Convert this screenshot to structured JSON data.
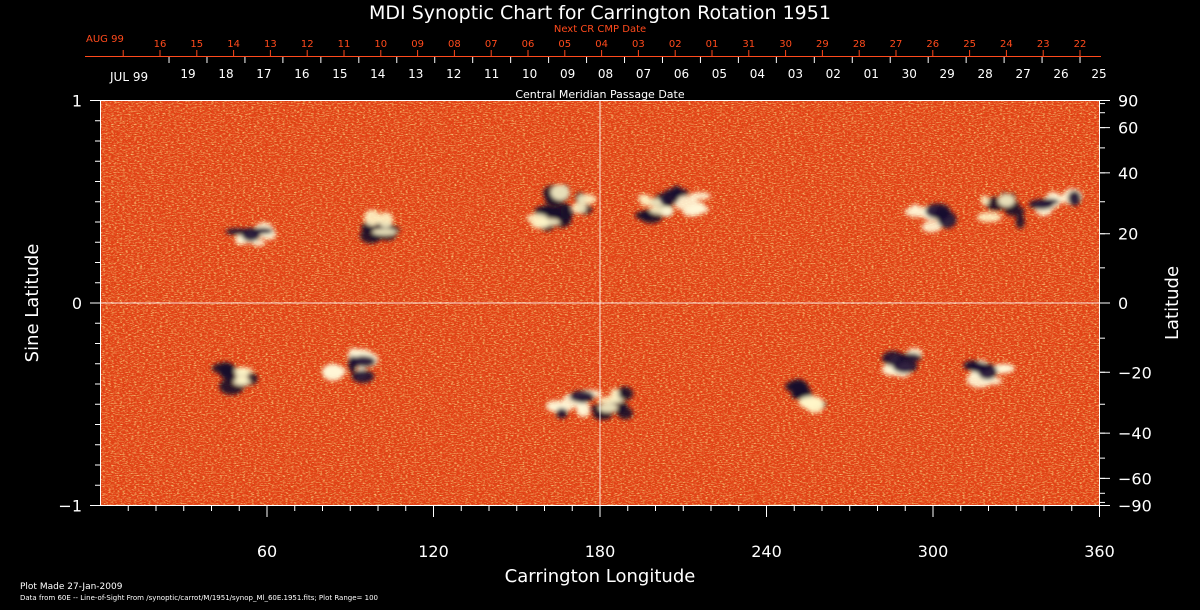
{
  "chart_data": {
    "type": "heatmap",
    "title": "MDI Synoptic Chart for Carrington Rotation 1951",
    "xlabel": "Carrington Longitude",
    "ylabel_left": "Sine Latitude",
    "ylabel_right": "Latitude",
    "xlim": [
      0,
      360
    ],
    "ylim": [
      -1,
      1
    ],
    "x_ticks": [
      60,
      120,
      180,
      240,
      300,
      360
    ],
    "y_ticks_left": [
      "1",
      "0",
      "−1"
    ],
    "lat_ticks": [
      90,
      60,
      40,
      20,
      0,
      -20,
      -40,
      -60,
      -90
    ],
    "lat_tick_labels": [
      "90",
      "60",
      "40",
      "20",
      "0",
      "−20",
      "−40",
      "−60",
      "−90"
    ],
    "top_axis_1": {
      "label": "Next CR CMP Date",
      "month": "AUG 99",
      "days": [
        "16",
        "15",
        "14",
        "13",
        "12",
        "11",
        "10",
        "09",
        "08",
        "07",
        "06",
        "05",
        "04",
        "03",
        "02",
        "01",
        "31",
        "30",
        "29",
        "28",
        "27",
        "26",
        "25",
        "24",
        "23",
        "22"
      ]
    },
    "top_axis_2": {
      "label": "Central Meridian Passage Date",
      "month": "JUL 99",
      "days": [
        "19",
        "18",
        "17",
        "16",
        "15",
        "14",
        "13",
        "12",
        "11",
        "10",
        "09",
        "08",
        "07",
        "06",
        "05",
        "04",
        "03",
        "02",
        "01",
        "30",
        "29",
        "28",
        "27",
        "26",
        "25"
      ]
    },
    "active_regions": [
      {
        "lon": 55,
        "lat": 20,
        "polarity": "positive"
      },
      {
        "lon": 100,
        "lat": 22,
        "polarity": "negative"
      },
      {
        "lon": 160,
        "lat": 24,
        "polarity": "negative"
      },
      {
        "lon": 170,
        "lat": 30,
        "polarity": "negative"
      },
      {
        "lon": 200,
        "lat": 28,
        "polarity": "negative"
      },
      {
        "lon": 210,
        "lat": 30,
        "polarity": "positive"
      },
      {
        "lon": 300,
        "lat": 25,
        "polarity": "positive"
      },
      {
        "lon": 325,
        "lat": 27,
        "polarity": "negative"
      },
      {
        "lon": 345,
        "lat": 30,
        "polarity": "positive"
      },
      {
        "lon": 50,
        "lat": -22,
        "polarity": "negative"
      },
      {
        "lon": 90,
        "lat": -18,
        "polarity": "positive"
      },
      {
        "lon": 170,
        "lat": -30,
        "polarity": "positive"
      },
      {
        "lon": 185,
        "lat": -30,
        "polarity": "negative"
      },
      {
        "lon": 255,
        "lat": -27,
        "polarity": "negative"
      },
      {
        "lon": 290,
        "lat": -17,
        "polarity": "positive"
      },
      {
        "lon": 320,
        "lat": -20,
        "polarity": "positive"
      }
    ],
    "colors": {
      "background": "#000000",
      "field_base": "#e8431a",
      "positive": "#ffffff",
      "negative": "#000020",
      "accent_red": "#ff4a1c"
    }
  },
  "footer": {
    "plot_made": "Plot Made 27-Jan-2009",
    "source": "Data from 60E -- Line-of-Sight From /synoptic/carrot/M/1951/synop_Ml_60E.1951.fits; Plot Range=  100"
  }
}
